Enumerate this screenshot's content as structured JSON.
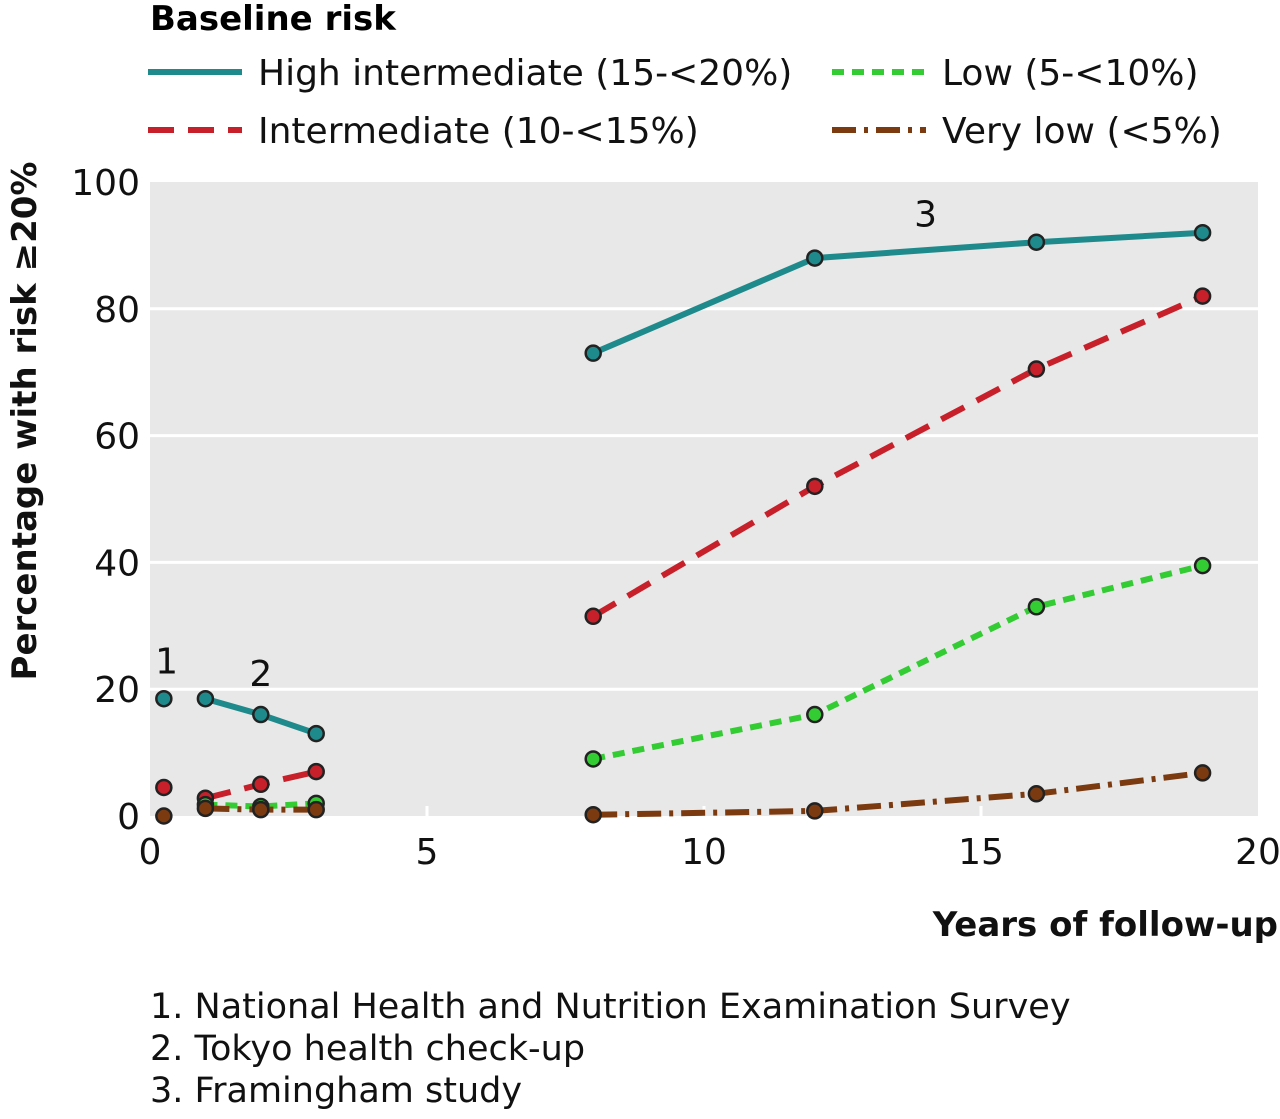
{
  "chart_data": {
    "type": "line",
    "title": "",
    "xlabel": "Years of follow-up",
    "ylabel": "Percentage with risk ≥20%",
    "xlim": [
      0,
      20
    ],
    "ylim": [
      0,
      100
    ],
    "xticks": [
      0,
      5,
      10,
      15,
      20
    ],
    "yticks": [
      0,
      20,
      40,
      60,
      80,
      100
    ],
    "grid": "horizontal",
    "legend": {
      "title": "Baseline risk",
      "placement": "top"
    },
    "series": [
      {
        "name": "High intermediate (15-<20%)",
        "color": "#1f8a8c",
        "dash": "solid",
        "segments": [
          [
            [
              0.25,
              18.5
            ]
          ],
          [
            [
              1,
              18.5
            ],
            [
              2,
              16
            ],
            [
              3,
              13
            ]
          ],
          [
            [
              8,
              73
            ],
            [
              12,
              88
            ],
            [
              16,
              90.5
            ],
            [
              19,
              92
            ]
          ]
        ]
      },
      {
        "name": "Intermediate (10-<15%)",
        "color": "#c8202a",
        "dash": "dashed",
        "segments": [
          [
            [
              0.25,
              4.5
            ]
          ],
          [
            [
              1,
              2.8
            ],
            [
              2,
              5
            ],
            [
              3,
              7
            ]
          ],
          [
            [
              8,
              31.5
            ],
            [
              12,
              52
            ],
            [
              16,
              70.5
            ],
            [
              19,
              82
            ]
          ]
        ]
      },
      {
        "name": "Low (5-<10%)",
        "color": "#33cc33",
        "dash": "dotted",
        "segments": [
          [
            [
              1,
              1.8
            ],
            [
              2,
              1.5
            ],
            [
              3,
              2
            ]
          ],
          [
            [
              8,
              9
            ],
            [
              12,
              16
            ],
            [
              16,
              33
            ],
            [
              19,
              39.5
            ]
          ]
        ]
      },
      {
        "name": "Very low (<5%)",
        "color": "#7b3a10",
        "dash": "dashdot",
        "segments": [
          [
            [
              0.25,
              0
            ]
          ],
          [
            [
              1,
              1.2
            ],
            [
              2,
              1
            ],
            [
              3,
              1
            ]
          ],
          [
            [
              8,
              0.2
            ],
            [
              12,
              0.8
            ],
            [
              16,
              3.5
            ],
            [
              19,
              6.8
            ]
          ]
        ]
      }
    ],
    "annotations": [
      {
        "text": "1",
        "x": 0.3,
        "y": 22.5
      },
      {
        "text": "2",
        "x": 2.0,
        "y": 20.5
      },
      {
        "text": "3",
        "x": 14.0,
        "y": 93
      }
    ],
    "notes": [
      "1. National Health and Nutrition Examination Survey",
      "2. Tokyo health check-up",
      "3. Framingham study"
    ]
  }
}
